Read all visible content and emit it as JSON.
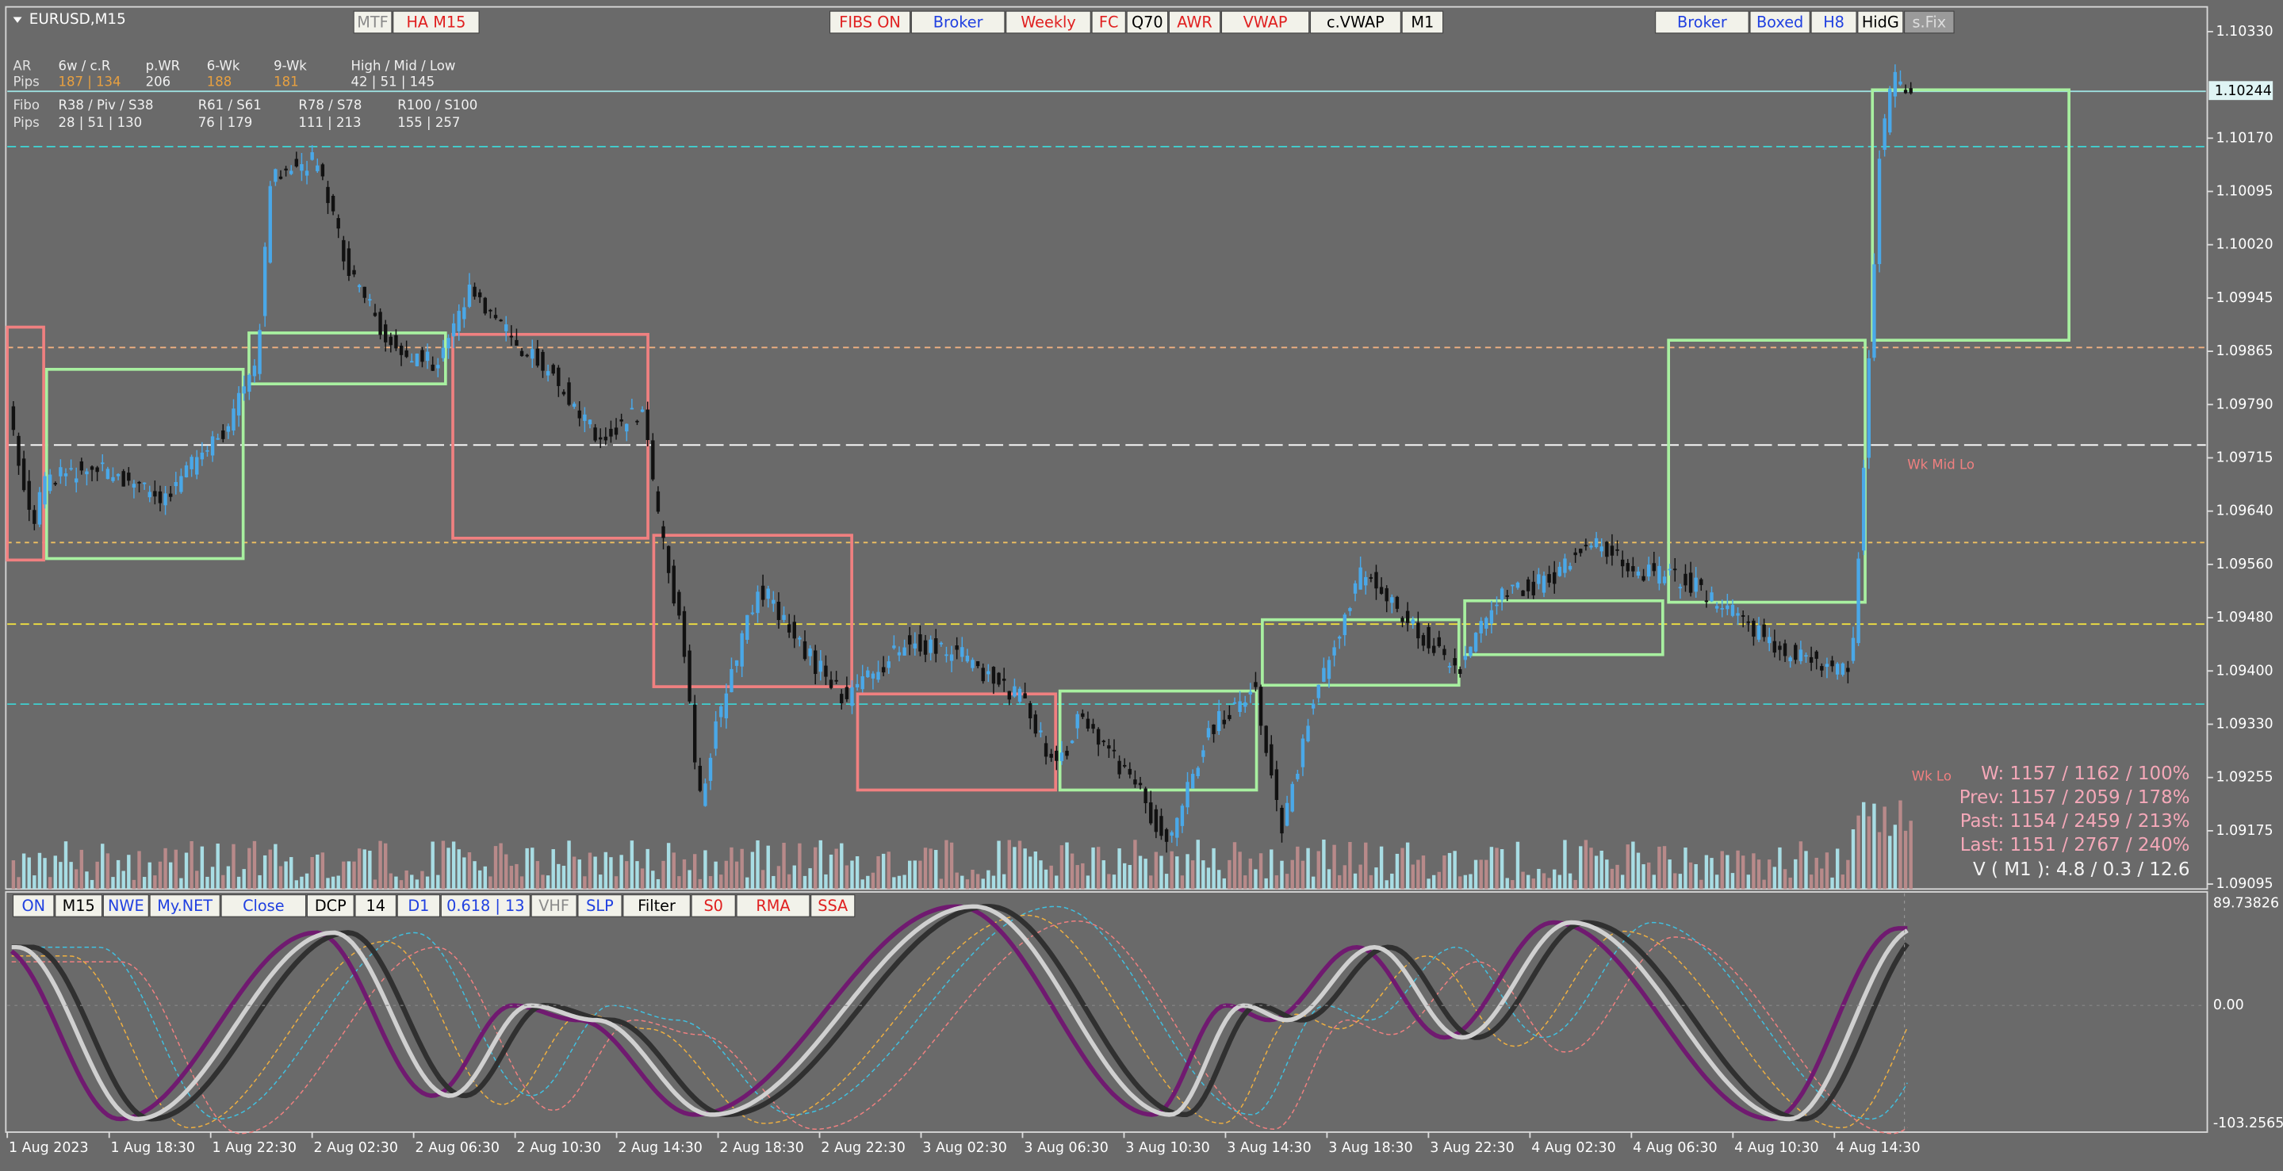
{
  "header": {
    "symbol": "EURUSD,M15"
  },
  "toolbar_left": [
    {
      "label": "MTF",
      "color": "#8a8a8a"
    },
    {
      "label": "HA M15",
      "color": "#e02020"
    }
  ],
  "toolbar_center": [
    {
      "label": "FIBS ON",
      "color": "#e02020"
    },
    {
      "label": "Broker",
      "color": "#2040e0"
    },
    {
      "label": "Weekly",
      "color": "#e02020"
    },
    {
      "label": "FC",
      "color": "#e02020"
    },
    {
      "label": "Q70",
      "color": "#000000"
    },
    {
      "label": "AWR",
      "color": "#e02020"
    },
    {
      "label": "VWAP",
      "color": "#e02020"
    },
    {
      "label": "c.VWAP",
      "color": "#000000"
    },
    {
      "label": "M1",
      "color": "#000000"
    }
  ],
  "toolbar_right": [
    {
      "label": "Broker",
      "color": "#2040e0"
    },
    {
      "label": "Boxed",
      "color": "#2040e0"
    },
    {
      "label": "H8",
      "color": "#2040e0"
    },
    {
      "label": "HidG",
      "color": "#000000"
    },
    {
      "label": "s.Fix",
      "color": "#dddddd"
    }
  ],
  "info": {
    "rows": [
      [
        "AR",
        "6w / c.R",
        "p.WR",
        "6-Wk",
        "9-Wk",
        "High / Mid / Low"
      ],
      [
        "Pips",
        "187 | 134",
        "206",
        "188",
        "181",
        "42 | 51 | 145"
      ],
      [
        "Fibo",
        "R38 / Piv / S38",
        "R61 / S61",
        "R78 / S78",
        "R100 / S100"
      ],
      [
        "Pips",
        "28 | 51 | 130",
        "76 | 179",
        "111 | 213",
        "155 | 257"
      ]
    ]
  },
  "price_axis": {
    "labels": [
      "1.10330",
      "1.10170",
      "1.10095",
      "1.10020",
      "1.09945",
      "1.09865",
      "1.09790",
      "1.09715",
      "1.09640",
      "1.09560",
      "1.09480",
      "1.09400",
      "1.09330",
      "1.09255",
      "1.09175",
      "1.09095"
    ],
    "current": "1.10244"
  },
  "stats": [
    "W: 1157 / 1162 / 100%",
    "Prev: 1157 / 2059 / 178%",
    "Past: 1154 / 2459 / 213%",
    "Last: 1151 / 2767 / 240%"
  ],
  "volume_line": "V ( M1 ): 4.8 / 0.3 / 12.6",
  "level_labels": {
    "wk_mid_lo": "Wk Mid Lo",
    "wk_lo": "Wk Lo"
  },
  "osc_toolbar": [
    {
      "label": "ON",
      "color": "#2040e0"
    },
    {
      "label": "M15",
      "color": "#000000"
    },
    {
      "label": "NWE",
      "color": "#2040e0"
    },
    {
      "label": "My.NET",
      "color": "#2040e0"
    },
    {
      "label": "Close",
      "color": "#2040e0"
    },
    {
      "label": "DCP",
      "color": "#000000"
    },
    {
      "label": "14",
      "color": "#000000"
    },
    {
      "label": "D1",
      "color": "#2040e0"
    },
    {
      "label": "0.618 | 13",
      "color": "#2040e0"
    },
    {
      "label": "VHF",
      "color": "#8a8a8a"
    },
    {
      "label": "SLP",
      "color": "#2040e0"
    },
    {
      "label": "Filter",
      "color": "#000000"
    },
    {
      "label": "S0",
      "color": "#e02020"
    },
    {
      "label": "RMA",
      "color": "#e02020"
    },
    {
      "label": "SSA",
      "color": "#e02020"
    }
  ],
  "osc_axis": [
    "89.73826",
    "0.00",
    "-103.2565"
  ],
  "time_axis": [
    "1 Aug 2023",
    "1 Aug 18:30",
    "1 Aug 22:30",
    "2 Aug 02:30",
    "2 Aug 06:30",
    "2 Aug 10:30",
    "2 Aug 14:30",
    "2 Aug 18:30",
    "2 Aug 22:30",
    "3 Aug 02:30",
    "3 Aug 06:30",
    "3 Aug 10:30",
    "3 Aug 14:30",
    "3 Aug 18:30",
    "3 Aug 22:30",
    "4 Aug 02:30",
    "4 Aug 06:30",
    "4 Aug 10:30",
    "4 Aug 14:30"
  ]
}
